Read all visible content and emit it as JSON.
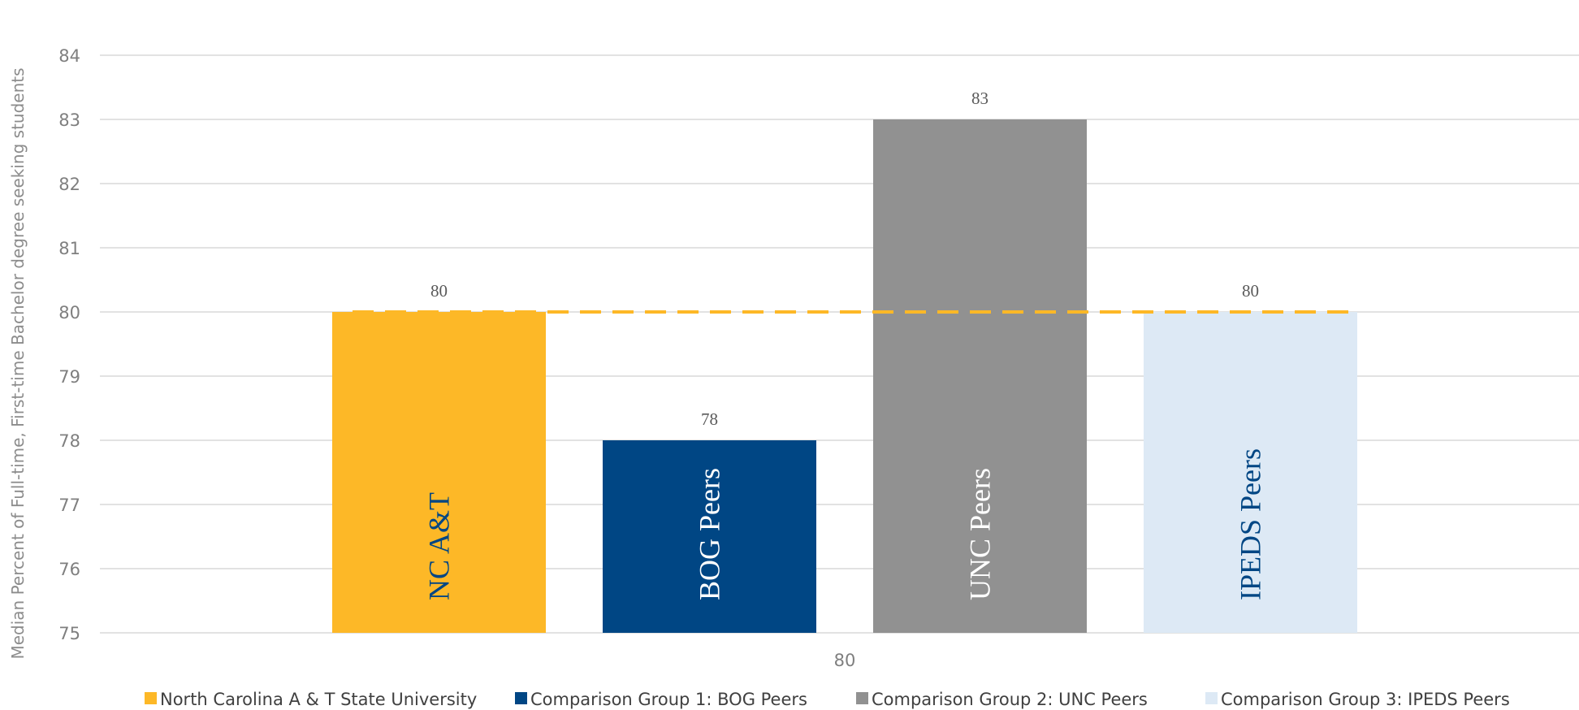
{
  "chart_data": {
    "type": "bar",
    "title": "",
    "xlabel": "",
    "ylabel": "Median Percent of Full-time, First-time Bachelor degree seeking students",
    "ylim": [
      75,
      84
    ],
    "yticks": [
      75,
      76,
      77,
      78,
      79,
      80,
      81,
      82,
      83,
      84
    ],
    "grid": true,
    "legend_position": "bottom",
    "categories": [
      "80"
    ],
    "series": [
      {
        "name": "North Carolina A & T State University",
        "label": "NC A&T",
        "values": [
          80
        ],
        "color": "#FDB827",
        "text_color": "#004684"
      },
      {
        "name": "Comparison Group 1: BOG Peers",
        "label": "BOG Peers",
        "values": [
          78
        ],
        "color": "#004684",
        "text_color": "#ffffff"
      },
      {
        "name": "Comparison Group 2: UNC Peers",
        "label": "UNC Peers",
        "values": [
          83
        ],
        "color": "#919191",
        "text_color": "#ffffff"
      },
      {
        "name": "Comparison Group 3: IPEDS Peers",
        "label": "IPEDS Peers",
        "values": [
          80
        ],
        "color": "#DDE9F5",
        "text_color": "#004684"
      }
    ],
    "reference_line": {
      "value": 80,
      "color": "#FDB827",
      "style": "dashed"
    }
  }
}
